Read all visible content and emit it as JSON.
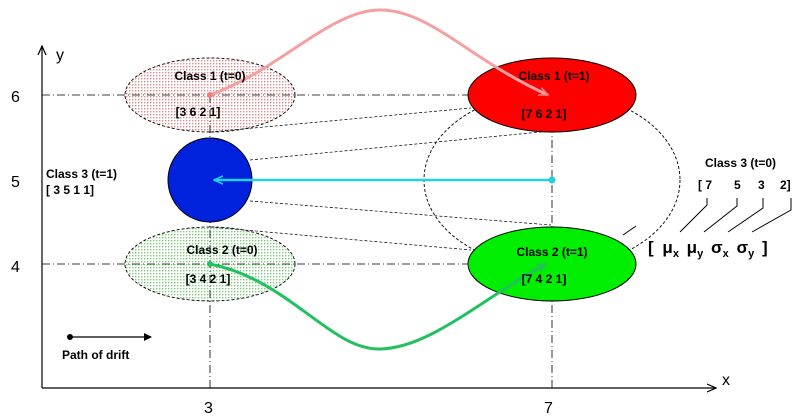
{
  "axes": {
    "x_label": "x",
    "y_label": "y",
    "x_ticks": [
      "3",
      "7"
    ],
    "y_ticks": [
      "6",
      "5",
      "4"
    ]
  },
  "classes": {
    "c1_t0": {
      "label": "Class 1 (t=0)",
      "vector": "[3 6 2 1]",
      "color": "#f4c4c4"
    },
    "c1_t1": {
      "label": "Class 1 (t=1)",
      "vector": "[7 6 2 1]",
      "color": "#ff0000"
    },
    "c2_t0": {
      "label": "Class 2 (t=0)",
      "vector": "[3 4 2 1]",
      "color": "#c8ecc8"
    },
    "c2_t1": {
      "label": "Class 2 (t=1)",
      "vector": "[7 4 2 1]",
      "color": "#00ee00"
    },
    "c3_t1": {
      "label": "Class 3 (t=1)",
      "vector": "[ 3 5 1 1]",
      "color": "#0022dd"
    },
    "c3_t0": {
      "label": "Class 3 (t=0)",
      "vector_parts": [
        "[ 7",
        "5",
        "3",
        "2]"
      ]
    }
  },
  "formula": {
    "open": "[",
    "mu": "μ",
    "sigma": "σ",
    "sub_x": "x",
    "sub_y": "y",
    "close": "]"
  },
  "legend": {
    "label": "Path of drift"
  },
  "colors": {
    "path1": "#f4a0a0",
    "path2": "#22c060",
    "path3": "#22d0e0"
  }
}
